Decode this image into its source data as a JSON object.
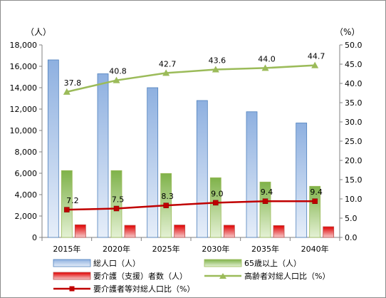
{
  "chart_data": {
    "type": "bar",
    "categories": [
      "2015年",
      "2020年",
      "2025年",
      "2030年",
      "2035年",
      "2040年"
    ],
    "y_left": {
      "unit_label": "（人）",
      "range": [
        0,
        18000
      ],
      "ticks": [
        "0",
        "2,000",
        "4,000",
        "6,000",
        "8,000",
        "10,000",
        "12,000",
        "14,000",
        "16,000",
        "18,000"
      ]
    },
    "y_right": {
      "unit_label": "（%）",
      "range": [
        0,
        50
      ],
      "ticks": [
        "0.0",
        "5.0",
        "10.0",
        "15.0",
        "20.0",
        "25.0",
        "30.0",
        "35.0",
        "40.0",
        "45.0",
        "50.0"
      ]
    },
    "grid": false,
    "legend_position": "bottom",
    "colors": {
      "total": "#4f81bd",
      "elderly": "#9bbb59",
      "care": "#c0504d",
      "elderly_line": "#9bbb59",
      "care_line": "#c00000"
    },
    "series": [
      {
        "name": "総人口（人）",
        "kind": "bar",
        "axis": "left",
        "values": [
          16600,
          15300,
          14000,
          12800,
          11750,
          10700
        ]
      },
      {
        "name": "65歳以上（人）",
        "kind": "bar",
        "axis": "left",
        "values": [
          6250,
          6250,
          5980,
          5580,
          5180,
          4780
        ]
      },
      {
        "name": "要介護（支援）者数（人）",
        "kind": "bar",
        "axis": "left",
        "values": [
          1180,
          1130,
          1160,
          1140,
          1110,
          1000
        ]
      },
      {
        "name": "高齢者対総人口比（%）",
        "kind": "line",
        "axis": "right",
        "values": [
          37.8,
          40.8,
          42.7,
          43.6,
          44.0,
          44.7
        ],
        "labels": [
          "37.8",
          "40.8",
          "42.7",
          "43.6",
          "44.0",
          "44.7"
        ]
      },
      {
        "name": "要介護者等対総人口比（%）",
        "kind": "line",
        "axis": "right",
        "values": [
          7.2,
          7.5,
          8.3,
          9.0,
          9.4,
          9.4
        ],
        "labels": [
          "7.2",
          "7.5",
          "8.3",
          "9.0",
          "9.4",
          "9.4"
        ]
      }
    ]
  }
}
